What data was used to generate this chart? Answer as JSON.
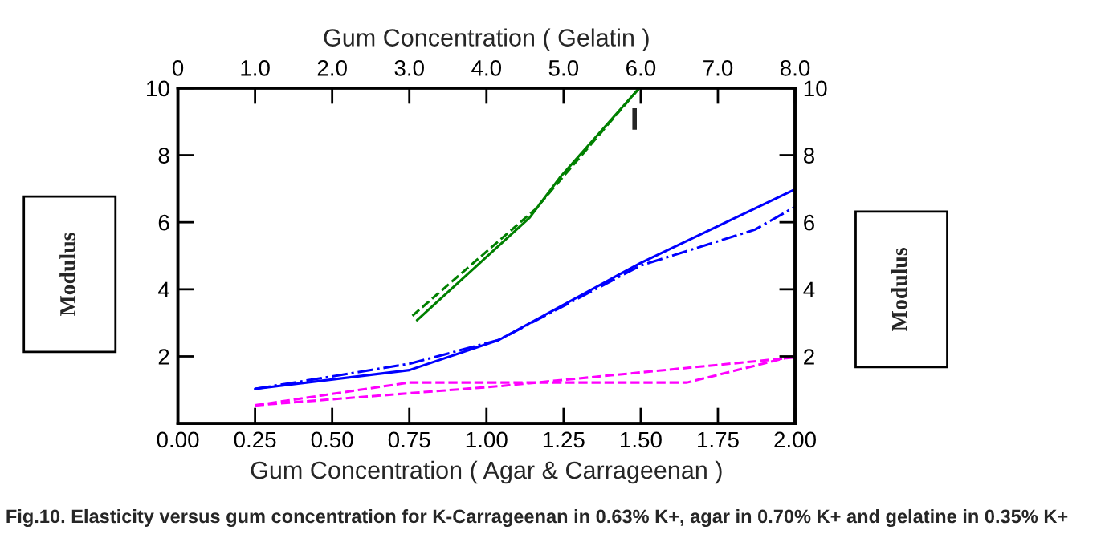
{
  "chart_data": {
    "type": "line",
    "xlabel": "Gum Concentration ( Agar & Carrageenan )",
    "x2label": "Gum Concentration ( Gelatin )",
    "ylabel": "Modulus",
    "y2label": "Modulus",
    "xlim": [
      0,
      2
    ],
    "xticks": [
      {
        "value": 0,
        "label": "0.00"
      },
      0.25,
      {
        "value": 0.5,
        "label": "0.50"
      },
      0.75,
      {
        "value": 1,
        "label": "1.00"
      },
      1.25,
      {
        "value": 1.5,
        "label": "1.50"
      },
      1.75,
      {
        "value": 2,
        "label": "2.00"
      }
    ],
    "x2lim": [
      0,
      8
    ],
    "x2ticks": [
      0,
      {
        "value": 1,
        "label": "1.0"
      },
      {
        "value": 2,
        "label": "2.0"
      },
      {
        "value": 3,
        "label": "3.0"
      },
      {
        "value": 4,
        "label": "4.0"
      },
      {
        "value": 5,
        "label": "5.0"
      },
      {
        "value": 6,
        "label": "6.0"
      },
      {
        "value": 7,
        "label": "7.0"
      },
      {
        "value": 8,
        "label": "8.0"
      }
    ],
    "ylim": [
      0,
      10
    ],
    "yticks": [
      2,
      4,
      6,
      8,
      10
    ],
    "y2lim": [
      0,
      10
    ],
    "y2ticks": [
      2,
      4,
      6,
      8,
      10
    ],
    "grid": false,
    "legend": false,
    "series": [
      {
        "color": "#008000",
        "line_style": "solid",
        "axis": "x2",
        "x": [
          3.1,
          4.56,
          4.95,
          5.98
        ],
        "values": [
          3.08,
          6.14,
          7.33,
          10
        ]
      },
      {
        "color": "#008000",
        "line_style": "dashed",
        "axis": "x2",
        "x": [
          3.04,
          4.63,
          5.98
        ],
        "values": [
          3.21,
          6.38,
          10
        ]
      },
      {
        "color": "#0000ff",
        "line_style": "solid",
        "x": [
          0.25,
          0.75,
          1.04,
          1.5,
          2.0
        ],
        "values": [
          1.03,
          1.59,
          2.49,
          4.79,
          6.98
        ]
      },
      {
        "color": "#0000ff",
        "line_style": "dashdot",
        "x": [
          0.25,
          0.75,
          1.04,
          1.5,
          1.87,
          2.0
        ],
        "values": [
          1.03,
          1.78,
          2.49,
          4.71,
          5.78,
          6.46
        ]
      },
      {
        "color": "#ff00ff",
        "line_style": "dashed",
        "x": [
          0.25,
          0.75,
          1.65,
          2.0
        ],
        "values": [
          0.54,
          1.22,
          1.22,
          2.02
        ]
      },
      {
        "color": "#ff00ff",
        "line_style": "dashed",
        "x": [
          0.25,
          0.75,
          1.04,
          2.0
        ],
        "values": [
          0.54,
          0.9,
          1.11,
          1.97
        ]
      }
    ],
    "annotations": [
      "I",
      "Fig.10. Elasticity versus gum concentration for K-Carrageenan in 0.63% K+, agar in 0.70% K+ and gelatine in 0.35% K+"
    ]
  }
}
